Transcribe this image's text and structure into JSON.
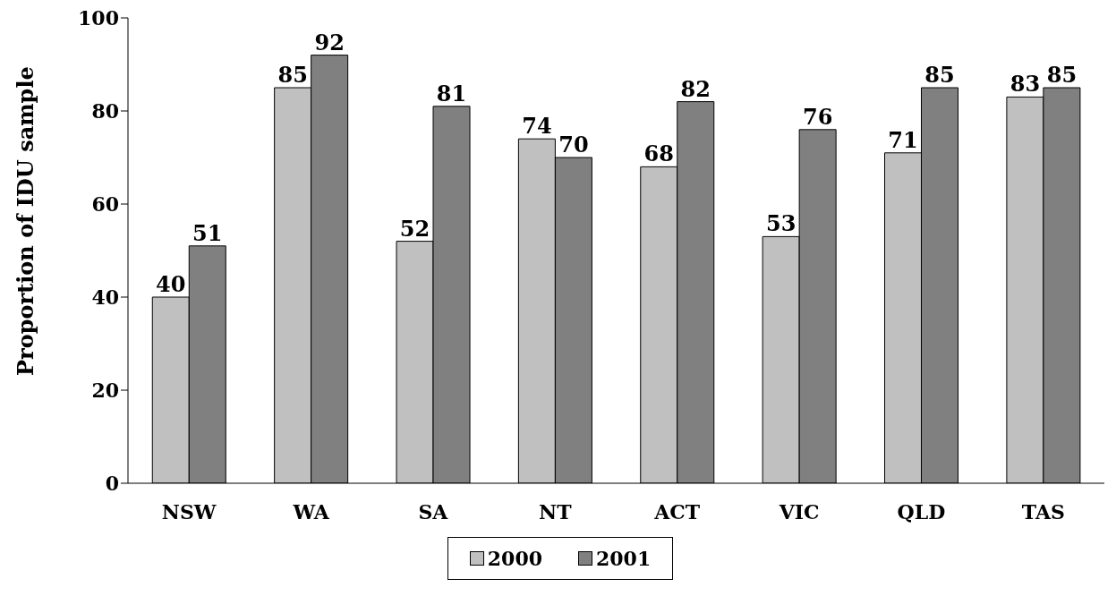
{
  "chart_data": {
    "type": "bar",
    "ylabel": "Proportion of IDU sample",
    "categories": [
      "NSW",
      "WA",
      "SA",
      "NT",
      "ACT",
      "VIC",
      "QLD",
      "TAS"
    ],
    "series": [
      {
        "name": "2000",
        "color": "#c0c0c0",
        "values": [
          40,
          85,
          52,
          74,
          68,
          53,
          71,
          83
        ]
      },
      {
        "name": "2001",
        "color": "#808080",
        "values": [
          51,
          92,
          81,
          70,
          82,
          76,
          85,
          85
        ]
      }
    ],
    "ylim": [
      0,
      100
    ],
    "yticks": [
      0,
      20,
      40,
      60,
      80,
      100
    ],
    "grid": false,
    "legend": "bottom",
    "data_labels": true
  }
}
